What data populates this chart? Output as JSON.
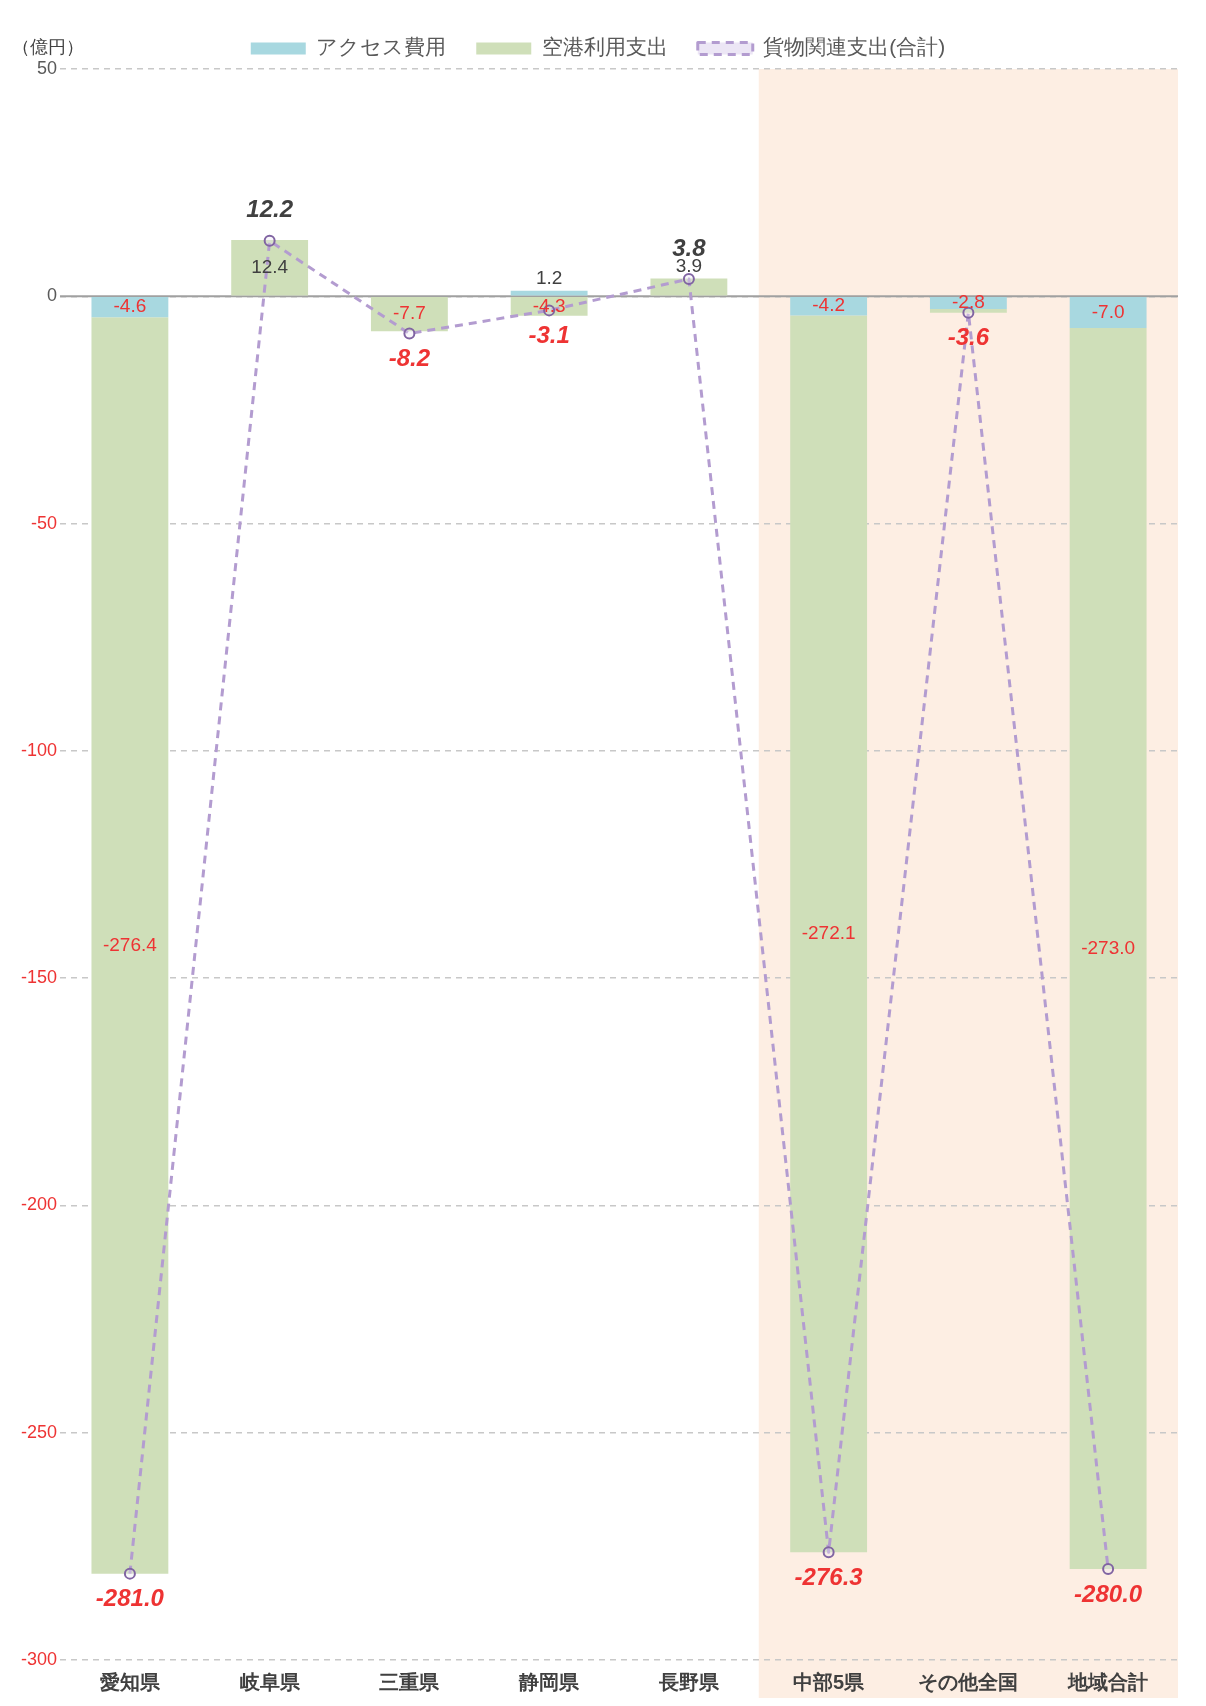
{
  "chart_data": {
    "type": "bar",
    "stacked": true,
    "ylabel": "（億円）",
    "categories": [
      "愛知県",
      "岐阜県",
      "三重県",
      "静岡県",
      "長野県",
      "中部5県",
      "その他全国",
      "地域合計"
    ],
    "series": [
      {
        "name": "アクセス費用",
        "color": "#a8d8e0",
        "values": [
          -4.6,
          null,
          null,
          1.2,
          null,
          -4.2,
          -2.8,
          -7.0
        ],
        "value_labels": [
          "-4.6",
          null,
          null,
          "1.2",
          null,
          "-4.2",
          "-2.8",
          "-7.0"
        ]
      },
      {
        "name": "空港利用支出",
        "color": "#cfdfb9",
        "values": [
          -276.4,
          12.4,
          -7.7,
          -4.3,
          3.9,
          -272.1,
          -0.8,
          -273.0
        ],
        "value_labels": [
          "-276.4",
          "12.4",
          "-7.7",
          "-4.3",
          "3.9",
          "-272.1",
          null,
          "-273.0"
        ]
      },
      {
        "name": "貨物関連支出(合計)",
        "type": "line",
        "color": "#b39cd0",
        "marker": "circle",
        "line_style": "dashed",
        "values": [
          -281.0,
          12.2,
          -8.2,
          -3.1,
          3.8,
          -276.3,
          -3.6,
          -280.0
        ],
        "value_labels": [
          "-281.0",
          "12.2",
          "-8.2",
          "-3.1",
          "3.8",
          "-276.3",
          "-3.6",
          "-280.0"
        ]
      }
    ],
    "ylim": [
      -300,
      50
    ],
    "yticks": [
      -300,
      -250,
      -200,
      -150,
      -100,
      -50,
      0,
      50
    ],
    "grid": "y",
    "legend": "top",
    "bands": [
      {
        "axis": "x",
        "from": "中部5県",
        "to": "地域合計",
        "color": "#fdeee3"
      }
    ]
  }
}
